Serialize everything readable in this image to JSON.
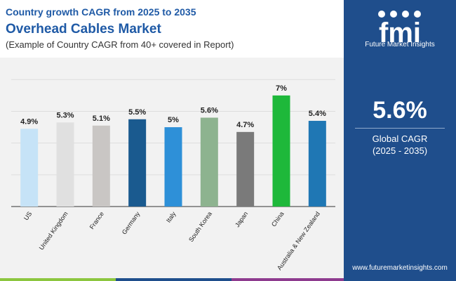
{
  "header": {
    "subtitle_top": "Country growth CAGR from 2025 to 2035",
    "title": "Overhead Cables Market",
    "note": "(Example of Country CAGR from 40+ covered in Report)"
  },
  "panel": {
    "brand": "Future Market Insights",
    "logo_text": "fmi",
    "global_value": "5.6%",
    "global_label": "Global CAGR",
    "global_period": "(2025 - 2035)",
    "url": "www.futuremarketinsights.com"
  },
  "colors": {
    "title_blue": "#1f5aa6",
    "panel_blue": "#1f4e8c",
    "strip": [
      "#8cc63f",
      "#1f4e8c",
      "#8e3b8f",
      "#1f4e8c"
    ]
  },
  "chart_data": {
    "type": "bar",
    "categories": [
      "US",
      "United Kingdom",
      "France",
      "Germany",
      "Italy",
      "South Korea",
      "Japan",
      "China",
      "Australia & New Zealand"
    ],
    "values": [
      4.9,
      5.3,
      5.1,
      5.5,
      5.0,
      5.6,
      4.7,
      7.0,
      5.4
    ],
    "data_labels": [
      "4.9%",
      "5.3%",
      "5.1%",
      "5.5%",
      "5%",
      "5.6%",
      "4.7%",
      "7%",
      "5.4%"
    ],
    "colors": [
      "#c6e3f7",
      "#e0e0e0",
      "#c9c6c4",
      "#1a5a8f",
      "#2e90d8",
      "#8db38f",
      "#7a7a7a",
      "#1eb83a",
      "#1f77b4"
    ],
    "ylim": [
      0,
      8.5
    ],
    "grid": true,
    "xlabel": "",
    "ylabel": ""
  }
}
